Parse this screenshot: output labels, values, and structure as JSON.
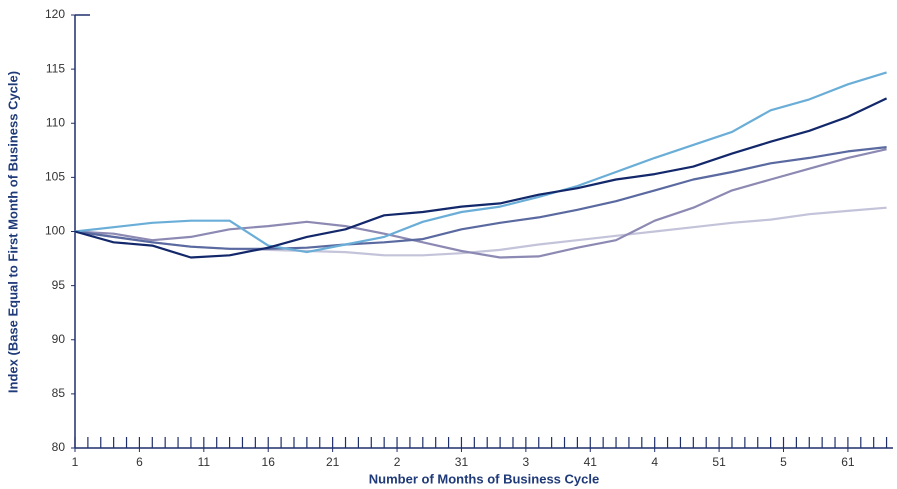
{
  "chart_data": {
    "type": "line",
    "x_label": "Number of Months of Business Cycle",
    "y_label": "Index (Base Equal to First Month of Business Cycle)",
    "x": [
      1,
      4,
      7,
      10,
      13,
      16,
      19,
      22,
      25,
      28,
      31,
      34,
      37,
      40,
      43,
      46,
      49,
      52,
      55,
      58,
      61,
      64
    ],
    "series": [
      {
        "color": "#c3c3da",
        "values": [
          100,
          99.5,
          99.0,
          98.6,
          98.4,
          98.3,
          98.2,
          98.1,
          97.8,
          97.8,
          98.0,
          98.3,
          98.8,
          99.2,
          99.6,
          100.0,
          100.4,
          100.8,
          101.1,
          101.6,
          101.9,
          102.2
        ]
      },
      {
        "color": "#8c89b3",
        "values": [
          100,
          99.8,
          99.2,
          99.5,
          100.2,
          100.5,
          100.9,
          100.5,
          99.8,
          99.0,
          98.2,
          97.6,
          97.7,
          98.5,
          99.2,
          101.0,
          102.2,
          103.8,
          104.8,
          105.8,
          106.8,
          107.6
        ]
      },
      {
        "color": "#5a6aa0",
        "values": [
          100,
          99.5,
          99.0,
          98.6,
          98.4,
          98.4,
          98.5,
          98.8,
          99.0,
          99.3,
          100.2,
          100.8,
          101.3,
          102.0,
          102.8,
          103.8,
          104.8,
          105.5,
          106.3,
          106.8,
          107.4,
          107.8
        ]
      },
      {
        "color": "#6aaed8",
        "values": [
          100,
          100.4,
          100.8,
          101.0,
          101.0,
          98.7,
          98.1,
          98.8,
          99.5,
          100.9,
          101.8,
          102.3,
          103.2,
          104.2,
          105.5,
          106.8,
          108.0,
          109.2,
          111.2,
          112.2,
          113.6,
          114.7
        ]
      },
      {
        "color": "#13286b",
        "values": [
          100,
          99.0,
          98.7,
          97.6,
          97.8,
          98.5,
          99.5,
          100.2,
          101.5,
          101.8,
          102.3,
          102.6,
          103.4,
          104.0,
          104.8,
          105.3,
          106.0,
          107.2,
          108.3,
          109.3,
          110.6,
          112.3
        ]
      }
    ],
    "xlim": [
      1,
      64.5
    ],
    "xticks": [
      1,
      6,
      11,
      16,
      21,
      {
        "value": 26,
        "label": "2"
      },
      31,
      {
        "value": 36,
        "label": "3"
      },
      41,
      {
        "value": 46,
        "label": "4"
      },
      51,
      {
        "value": 56,
        "label": "5"
      },
      61
    ],
    "ylim": [
      80,
      120
    ],
    "yticks": [
      80,
      85,
      90,
      95,
      100,
      105,
      110,
      115,
      120
    ],
    "grid": false
  }
}
